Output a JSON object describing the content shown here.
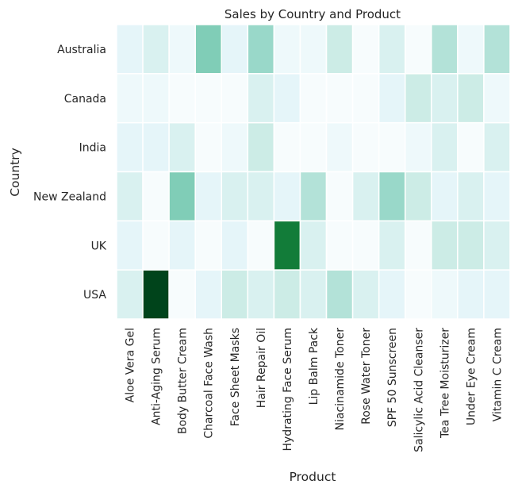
{
  "chart_data": {
    "type": "heatmap",
    "title": "Sales by Country and Product",
    "xlabel": "Product",
    "ylabel": "Country",
    "x": [
      "Aloe Vera Gel",
      "Anti-Aging Serum",
      "Body Butter Cream",
      "Charcoal Face Wash",
      "Face Sheet Masks",
      "Hair Repair Oil",
      "Hydrating Face Serum",
      "Lip Balm Pack",
      "Niacinamide Toner",
      "Rose Water Toner",
      "SPF 50 Sunscreen",
      "Salicylic Acid Cleanser",
      "Tea Tree Moisturizer",
      "Under Eye Cream",
      "Vitamin C Cream"
    ],
    "y": [
      "Australia",
      "Canada",
      "India",
      "New Zealand",
      "UK",
      "USA"
    ],
    "values": [
      [
        2,
        3,
        1,
        7,
        2,
        6,
        1,
        1,
        4,
        0,
        3,
        0,
        5,
        1,
        5
      ],
      [
        1,
        1,
        0,
        0,
        0,
        3,
        2,
        0,
        0,
        0,
        2,
        4,
        3,
        4,
        1
      ],
      [
        2,
        2,
        3,
        0,
        1,
        4,
        0,
        0,
        1,
        0,
        0,
        1,
        3,
        0,
        3
      ],
      [
        3,
        0,
        7,
        2,
        3,
        3,
        2,
        5,
        0,
        3,
        6,
        4,
        2,
        3,
        2
      ],
      [
        2,
        0,
        2,
        0,
        2,
        0,
        13,
        3,
        0,
        0,
        3,
        0,
        4,
        4,
        3
      ],
      [
        3,
        16,
        0,
        2,
        4,
        3,
        4,
        3,
        5,
        3,
        2,
        0,
        1,
        2,
        2
      ]
    ],
    "colormap": [
      "#f7fcfd",
      "#e5f5f9",
      "#ccece6",
      "#99d8c9",
      "#66c2a4",
      "#41ae76",
      "#238b45",
      "#006d2c",
      "#00441b"
    ],
    "vmin": 0,
    "vmax": 16,
    "grid_color": "#ffffff",
    "colorbar": false
  }
}
